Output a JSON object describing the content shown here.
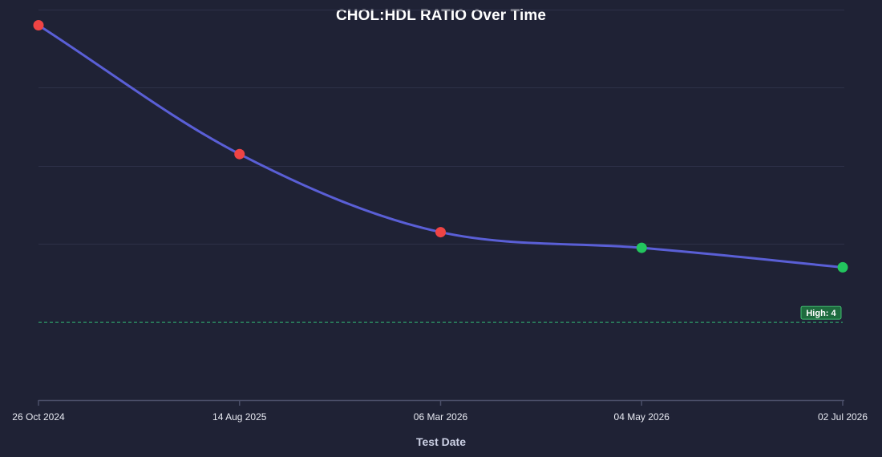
{
  "chart_data": {
    "type": "line",
    "title": "CHOL:HDL RATIO Over Time",
    "xlabel": "Test Date",
    "ylabel": "",
    "categories": [
      "26 Oct 2024",
      "14 Aug 2025",
      "06 Mar 2026",
      "04 May 2026",
      "02 Jul 2026"
    ],
    "series": [
      {
        "values": [
          7.8,
          6.15,
          5.15,
          4.95,
          4.7
        ],
        "point_status": [
          "high",
          "high",
          "high",
          "normal",
          "normal"
        ]
      }
    ],
    "ylim": [
      3.0,
      8.0
    ],
    "y_grid_values": [
      8.0,
      7.0,
      6.0,
      5.0
    ],
    "y_tick_labels_visible": false,
    "grid": true,
    "legend": "none",
    "threshold": {
      "value": 4,
      "label": "High: 4"
    },
    "colors": {
      "line": "#5a5fd6",
      "high_point": "#ef4444",
      "normal_point": "#22c55e",
      "threshold": "#2f9e6a",
      "threshold_badge_bg": "#1e6b3e",
      "threshold_badge_border": "#4ade80",
      "grid": "#2d3148",
      "axis": "#4a4e68"
    }
  }
}
